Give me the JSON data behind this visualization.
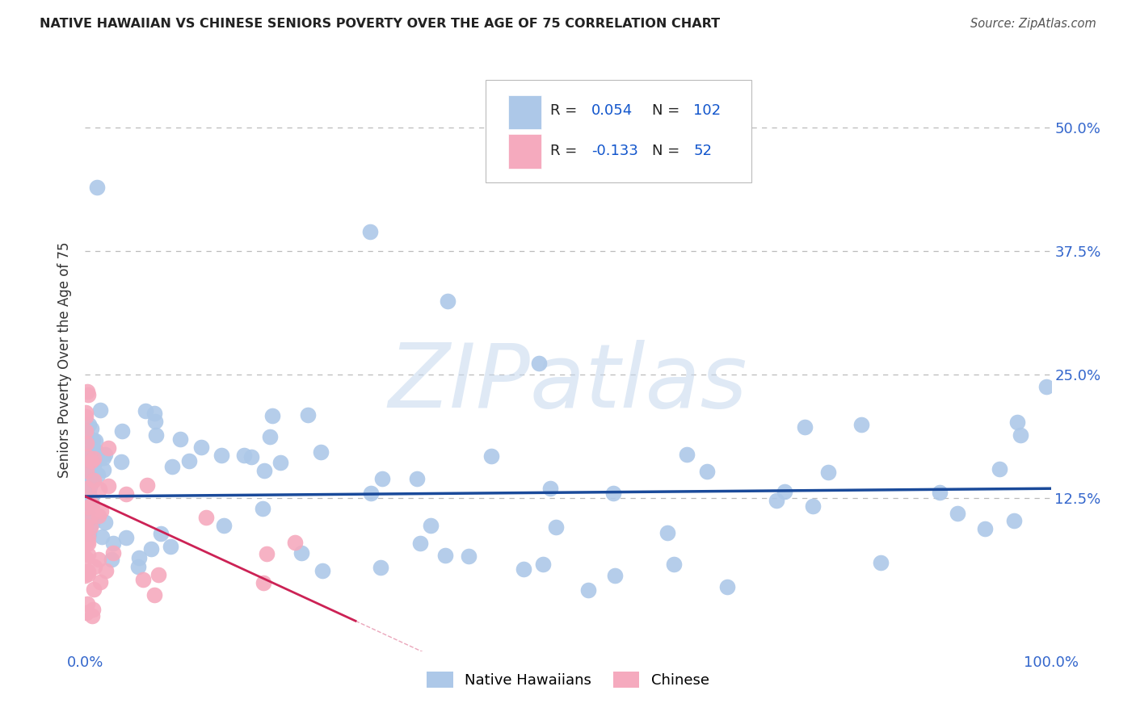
{
  "title": "NATIVE HAWAIIAN VS CHINESE SENIORS POVERTY OVER THE AGE OF 75 CORRELATION CHART",
  "source": "Source: ZipAtlas.com",
  "ylabel": "Seniors Poverty Over the Age of 75",
  "xlim": [
    0,
    1.0
  ],
  "ylim": [
    -0.03,
    0.56
  ],
  "nh_R": 0.054,
  "nh_N": 102,
  "ch_R": -0.133,
  "ch_N": 52,
  "nh_color": "#adc8e8",
  "ch_color": "#f5aabe",
  "nh_line_color": "#1a4a9a",
  "ch_line_color": "#cc2255",
  "watermark": "ZIPatlas",
  "legend_r_color": "#1155cc",
  "background_color": "#ffffff",
  "grid_color": "#bbbbbb",
  "title_color": "#222222",
  "label_color": "#555555",
  "tick_color": "#3366cc",
  "nh_line_intercept": 0.127,
  "nh_line_slope": 0.008,
  "ch_line_intercept": 0.127,
  "ch_line_slope": -0.45,
  "ch_line_xmax": 0.28
}
